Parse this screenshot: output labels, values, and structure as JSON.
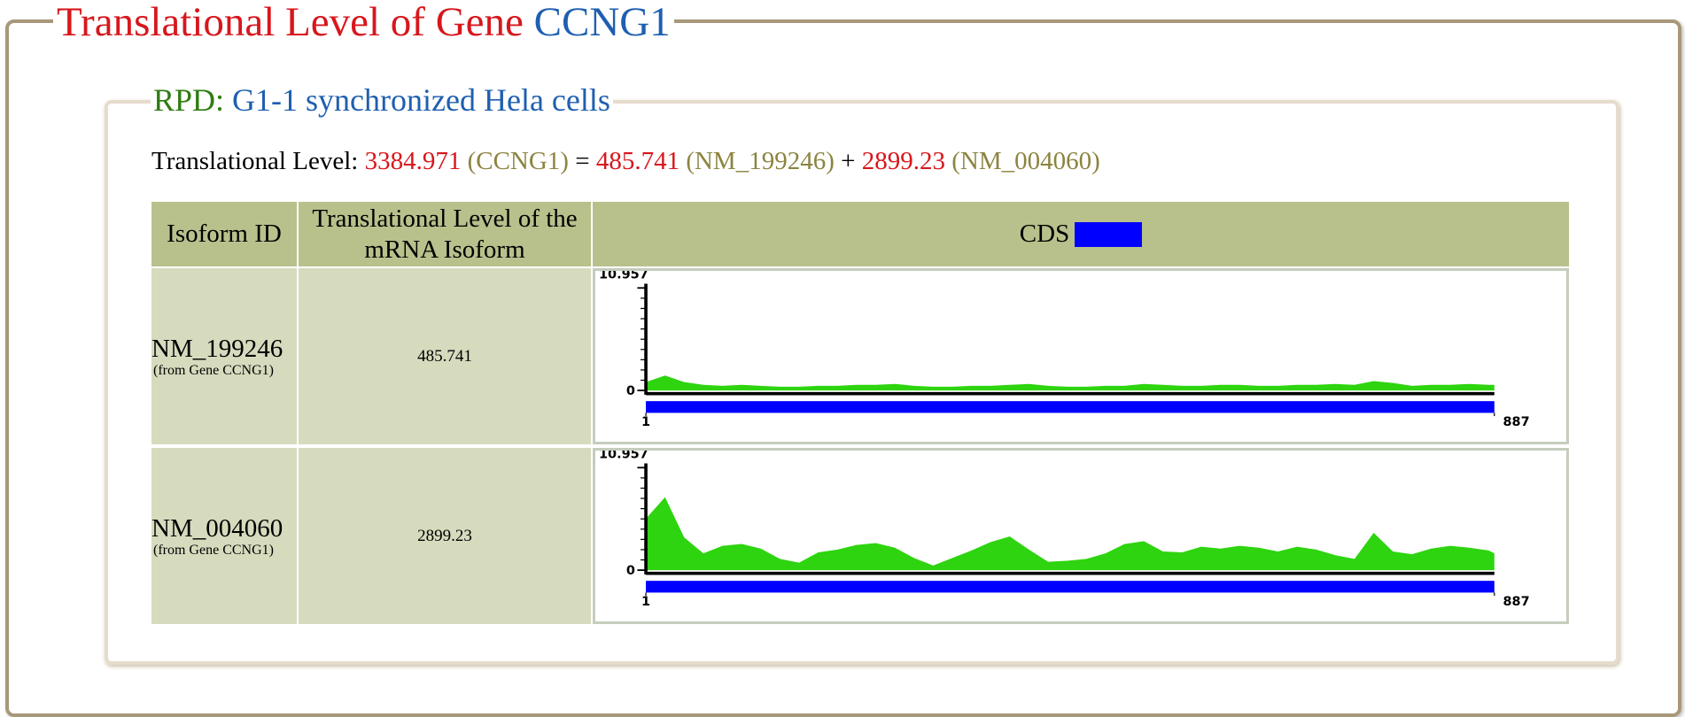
{
  "header": {
    "title": "Translational Level of Gene",
    "gene": "CCNG1"
  },
  "section": {
    "label": "RPD:",
    "title": "G1-1 synchronized Hela cells"
  },
  "summary": {
    "label": "Translational Level:",
    "total": "3384.971",
    "gene": "(CCNG1)",
    "equals": "=",
    "plus": "+",
    "parts": [
      {
        "value": "485.741",
        "id": "(NM_199246)"
      },
      {
        "value": "2899.23",
        "id": "(NM_004060)"
      }
    ]
  },
  "table": {
    "headers": [
      "Isoform ID",
      "Translational Level of the mRNA Isoform",
      "CDS"
    ],
    "rows": [
      {
        "id": "NM_199246",
        "source": "(from Gene CCNG1)",
        "level": "485.741",
        "profile": {
          "ylim": [
            0,
            10.957
          ],
          "yticks": [
            0,
            10.957
          ],
          "xlim": [
            1,
            887
          ],
          "xticks": [
            1,
            887
          ],
          "x": [
            1,
            21,
            41,
            61,
            81,
            101,
            121,
            141,
            161,
            181,
            201,
            221,
            241,
            261,
            281,
            301,
            321,
            341,
            361,
            381,
            401,
            421,
            441,
            461,
            481,
            501,
            521,
            541,
            561,
            581,
            601,
            621,
            641,
            661,
            681,
            701,
            721,
            741,
            761,
            781,
            801,
            821,
            841,
            861,
            881,
            887
          ],
          "values": [
            0.9,
            1.6,
            0.9,
            0.6,
            0.5,
            0.6,
            0.5,
            0.4,
            0.4,
            0.5,
            0.5,
            0.6,
            0.6,
            0.7,
            0.5,
            0.4,
            0.4,
            0.5,
            0.5,
            0.6,
            0.7,
            0.5,
            0.4,
            0.4,
            0.5,
            0.5,
            0.7,
            0.6,
            0.5,
            0.5,
            0.6,
            0.6,
            0.5,
            0.5,
            0.6,
            0.6,
            0.7,
            0.6,
            1.0,
            0.8,
            0.5,
            0.6,
            0.6,
            0.7,
            0.6,
            0.6
          ]
        }
      },
      {
        "id": "NM_004060",
        "source": "(from Gene CCNG1)",
        "level": "2899.23",
        "profile": {
          "ylim": [
            0,
            10.957
          ],
          "yticks": [
            0,
            10.957
          ],
          "xlim": [
            1,
            887
          ],
          "xticks": [
            1,
            887
          ],
          "x": [
            1,
            21,
            41,
            61,
            81,
            101,
            121,
            141,
            161,
            181,
            201,
            221,
            241,
            261,
            281,
            301,
            321,
            341,
            361,
            381,
            401,
            421,
            441,
            461,
            481,
            501,
            521,
            541,
            561,
            581,
            601,
            621,
            641,
            661,
            681,
            701,
            721,
            741,
            761,
            781,
            801,
            821,
            841,
            861,
            881,
            887
          ],
          "values": [
            5.5,
            7.8,
            3.5,
            1.8,
            2.6,
            2.8,
            2.3,
            1.2,
            0.8,
            1.9,
            2.2,
            2.7,
            2.9,
            2.4,
            1.3,
            0.5,
            1.3,
            2.1,
            3.0,
            3.6,
            2.2,
            0.9,
            1.0,
            1.2,
            1.8,
            2.8,
            3.1,
            2.0,
            1.9,
            2.5,
            2.3,
            2.6,
            2.4,
            2.0,
            2.5,
            2.2,
            1.6,
            1.2,
            4.0,
            2.0,
            1.7,
            2.3,
            2.6,
            2.4,
            2.1,
            1.8
          ]
        }
      }
    ]
  }
}
